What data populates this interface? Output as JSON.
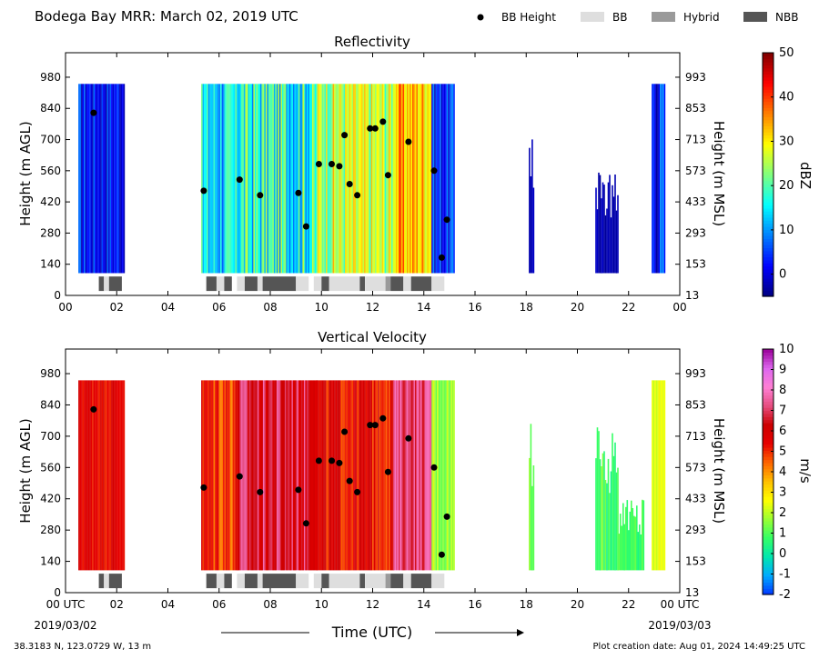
{
  "header": {
    "title": "Bodega Bay MRR:  March 02, 2019 UTC",
    "legend": [
      {
        "label": "BB Height",
        "kind": "dot",
        "color": "#000000"
      },
      {
        "label": "BB",
        "kind": "box",
        "color": "#dedede"
      },
      {
        "label": "Hybrid",
        "kind": "box",
        "color": "#9a9a9a"
      },
      {
        "label": "NBB",
        "kind": "box",
        "color": "#555555"
      }
    ]
  },
  "footer": {
    "location": "38.3183 N, 123.0729 W, 13 m",
    "created": "Plot creation date: Aug 01, 2024 14:49:25 UTC",
    "time_label": "Time (UTC)",
    "start_date": "2019/03/02",
    "end_date": "2019/03/03"
  },
  "chart_data": [
    {
      "type": "heatmap",
      "title": "Reflectivity",
      "ylabel": "Height (m AGL)",
      "ylabel_right": "Height (m MSL)",
      "colorbar_label": "dBZ",
      "colorbar_range": [
        -5,
        50
      ],
      "colorbar_ticks": [
        0,
        10,
        20,
        30,
        40,
        50
      ],
      "colors": [
        "#00007f",
        "#0000ff",
        "#007fff",
        "#00ffff",
        "#7fff7f",
        "#ffff00",
        "#ff7f00",
        "#ff0000",
        "#7f0000"
      ],
      "xlim": [
        0,
        24
      ],
      "ylim": [
        0,
        1090
      ],
      "xticks": [
        "00",
        "02",
        "04",
        "06",
        "08",
        "10",
        "12",
        "14",
        "16",
        "18",
        "20",
        "22",
        "00"
      ],
      "yticks_left": [
        0,
        140,
        280,
        420,
        560,
        700,
        840,
        980
      ],
      "yticks_right": [
        13,
        153,
        293,
        433,
        573,
        713,
        853,
        993
      ],
      "precip_segments": [
        {
          "t0": 0.5,
          "t1": 2.3,
          "vmin": -3,
          "vmax": 9,
          "top": 950
        },
        {
          "t0": 5.3,
          "t1": 6.7,
          "vmin": 6,
          "vmax": 22,
          "top": 950
        },
        {
          "t0": 6.7,
          "t1": 9.8,
          "vmin": 8,
          "vmax": 27,
          "top": 950
        },
        {
          "t0": 9.8,
          "t1": 12.8,
          "vmin": 18,
          "vmax": 34,
          "top": 950
        },
        {
          "t0": 12.8,
          "t1": 14.3,
          "vmin": 26,
          "vmax": 40,
          "top": 950
        },
        {
          "t0": 14.3,
          "t1": 15.2,
          "vmin": -2,
          "vmax": 10,
          "top": 950
        },
        {
          "t0": 18.1,
          "t1": 18.3,
          "vmin": -3,
          "vmax": 0,
          "top": 760
        },
        {
          "t0": 20.7,
          "t1": 21.6,
          "vmin": -4,
          "vmax": -1,
          "top": 560
        },
        {
          "t0": 22.9,
          "t1": 23.4,
          "vmin": -4,
          "vmax": 12,
          "top": 950
        }
      ],
      "bb_points": [
        {
          "t": 1.1,
          "h": 820
        },
        {
          "t": 5.4,
          "h": 470
        },
        {
          "t": 6.8,
          "h": 520
        },
        {
          "t": 7.6,
          "h": 450
        },
        {
          "t": 9.1,
          "h": 460
        },
        {
          "t": 9.4,
          "h": 310
        },
        {
          "t": 9.9,
          "h": 590
        },
        {
          "t": 10.4,
          "h": 590
        },
        {
          "t": 10.7,
          "h": 580
        },
        {
          "t": 10.9,
          "h": 720
        },
        {
          "t": 11.1,
          "h": 500
        },
        {
          "t": 11.4,
          "h": 450
        },
        {
          "t": 11.9,
          "h": 750
        },
        {
          "t": 12.1,
          "h": 750
        },
        {
          "t": 12.4,
          "h": 780
        },
        {
          "t": 12.6,
          "h": 540
        },
        {
          "t": 13.4,
          "h": 690
        },
        {
          "t": 14.4,
          "h": 560
        },
        {
          "t": 14.7,
          "h": 170
        },
        {
          "t": 14.9,
          "h": 340
        }
      ],
      "bb_classes": [
        {
          "t0": 1.3,
          "t1": 1.5,
          "class": "NBB"
        },
        {
          "t0": 1.5,
          "t1": 1.7,
          "class": "BB"
        },
        {
          "t0": 1.7,
          "t1": 2.2,
          "class": "NBB"
        },
        {
          "t0": 5.5,
          "t1": 5.9,
          "class": "NBB"
        },
        {
          "t0": 5.9,
          "t1": 6.2,
          "class": "BB"
        },
        {
          "t0": 6.2,
          "t1": 6.5,
          "class": "NBB"
        },
        {
          "t0": 6.7,
          "t1": 7.0,
          "class": "BB"
        },
        {
          "t0": 7.0,
          "t1": 7.5,
          "class": "NBB"
        },
        {
          "t0": 7.5,
          "t1": 7.7,
          "class": "BB"
        },
        {
          "t0": 7.7,
          "t1": 9.0,
          "class": "NBB"
        },
        {
          "t0": 9.0,
          "t1": 9.5,
          "class": "BB"
        },
        {
          "t0": 9.7,
          "t1": 10.0,
          "class": "BB"
        },
        {
          "t0": 10.0,
          "t1": 10.3,
          "class": "NBB"
        },
        {
          "t0": 10.3,
          "t1": 11.5,
          "class": "BB"
        },
        {
          "t0": 11.5,
          "t1": 11.7,
          "class": "NBB"
        },
        {
          "t0": 11.7,
          "t1": 12.5,
          "class": "BB"
        },
        {
          "t0": 12.5,
          "t1": 12.7,
          "class": "Hybrid"
        },
        {
          "t0": 12.7,
          "t1": 13.2,
          "class": "NBB"
        },
        {
          "t0": 13.2,
          "t1": 13.5,
          "class": "BB"
        },
        {
          "t0": 13.5,
          "t1": 14.3,
          "class": "NBB"
        },
        {
          "t0": 14.3,
          "t1": 14.8,
          "class": "BB"
        }
      ]
    },
    {
      "type": "heatmap",
      "title": "Vertical Velocity",
      "ylabel": "Height (m AGL)",
      "ylabel_right": "Height (m MSL)",
      "colorbar_label": "m/s",
      "colorbar_range": [
        -2,
        10
      ],
      "colorbar_ticks": [
        -2,
        -1,
        0,
        1,
        2,
        3,
        4,
        5,
        6,
        7,
        8,
        9,
        10
      ],
      "colors": [
        "#0033ff",
        "#00aaff",
        "#00e6b0",
        "#33ff66",
        "#99ff33",
        "#ffff00",
        "#ffc000",
        "#ff6600",
        "#e60000",
        "#cc0000",
        "#e64d80",
        "#ff80d5",
        "#dd66ee",
        "#990099"
      ],
      "xlim": [
        0,
        24
      ],
      "ylim": [
        0,
        1090
      ],
      "xticks": [
        "00 UTC",
        "02",
        "04",
        "06",
        "08",
        "10",
        "12",
        "14",
        "16",
        "18",
        "20",
        "22",
        "00 UTC"
      ],
      "yticks_left": [
        0,
        140,
        280,
        420,
        560,
        700,
        840,
        980
      ],
      "yticks_right": [
        13,
        153,
        293,
        433,
        573,
        713,
        853,
        993
      ],
      "precip_segments": [
        {
          "t0": 0.5,
          "t1": 2.3,
          "vmin": 5,
          "vmax": 6.2,
          "top": 950
        },
        {
          "t0": 5.3,
          "t1": 6.7,
          "vmin": 4,
          "vmax": 6.2,
          "top": 950
        },
        {
          "t0": 6.7,
          "t1": 9.8,
          "vmin": 5.5,
          "vmax": 7.8,
          "top": 950
        },
        {
          "t0": 9.8,
          "t1": 12.8,
          "vmin": 4.5,
          "vmax": 6.5,
          "top": 950
        },
        {
          "t0": 12.8,
          "t1": 14.3,
          "vmin": 6.5,
          "vmax": 8,
          "top": 950
        },
        {
          "t0": 14.3,
          "t1": 15.2,
          "vmin": 1,
          "vmax": 2.5,
          "top": 950
        },
        {
          "t0": 18.1,
          "t1": 18.3,
          "vmin": 1,
          "vmax": 2,
          "top": 760
        },
        {
          "t0": 20.7,
          "t1": 21.6,
          "vmin": 0.2,
          "vmax": 1.5,
          "top": 760
        },
        {
          "t0": 21.6,
          "t1": 22.6,
          "vmin": 0.3,
          "vmax": 1.3,
          "top": 420
        },
        {
          "t0": 22.9,
          "t1": 23.4,
          "vmin": 2,
          "vmax": 3,
          "top": 950
        }
      ],
      "bb_points": [
        {
          "t": 1.1,
          "h": 820
        },
        {
          "t": 5.4,
          "h": 470
        },
        {
          "t": 6.8,
          "h": 520
        },
        {
          "t": 7.6,
          "h": 450
        },
        {
          "t": 9.1,
          "h": 460
        },
        {
          "t": 9.4,
          "h": 310
        },
        {
          "t": 9.9,
          "h": 590
        },
        {
          "t": 10.4,
          "h": 590
        },
        {
          "t": 10.7,
          "h": 580
        },
        {
          "t": 10.9,
          "h": 720
        },
        {
          "t": 11.1,
          "h": 500
        },
        {
          "t": 11.4,
          "h": 450
        },
        {
          "t": 11.9,
          "h": 750
        },
        {
          "t": 12.1,
          "h": 750
        },
        {
          "t": 12.4,
          "h": 780
        },
        {
          "t": 12.6,
          "h": 540
        },
        {
          "t": 13.4,
          "h": 690
        },
        {
          "t": 14.4,
          "h": 560
        },
        {
          "t": 14.7,
          "h": 170
        },
        {
          "t": 14.9,
          "h": 340
        }
      ],
      "bb_classes": [
        {
          "t0": 1.3,
          "t1": 1.5,
          "class": "NBB"
        },
        {
          "t0": 1.5,
          "t1": 1.7,
          "class": "BB"
        },
        {
          "t0": 1.7,
          "t1": 2.2,
          "class": "NBB"
        },
        {
          "t0": 5.5,
          "t1": 5.9,
          "class": "NBB"
        },
        {
          "t0": 5.9,
          "t1": 6.2,
          "class": "BB"
        },
        {
          "t0": 6.2,
          "t1": 6.5,
          "class": "NBB"
        },
        {
          "t0": 6.7,
          "t1": 7.0,
          "class": "BB"
        },
        {
          "t0": 7.0,
          "t1": 7.5,
          "class": "NBB"
        },
        {
          "t0": 7.5,
          "t1": 7.7,
          "class": "BB"
        },
        {
          "t0": 7.7,
          "t1": 9.0,
          "class": "NBB"
        },
        {
          "t0": 9.0,
          "t1": 9.5,
          "class": "BB"
        },
        {
          "t0": 9.7,
          "t1": 10.0,
          "class": "BB"
        },
        {
          "t0": 10.0,
          "t1": 10.3,
          "class": "NBB"
        },
        {
          "t0": 10.3,
          "t1": 11.5,
          "class": "BB"
        },
        {
          "t0": 11.5,
          "t1": 11.7,
          "class": "NBB"
        },
        {
          "t0": 11.7,
          "t1": 12.5,
          "class": "BB"
        },
        {
          "t0": 12.5,
          "t1": 12.7,
          "class": "Hybrid"
        },
        {
          "t0": 12.7,
          "t1": 13.2,
          "class": "NBB"
        },
        {
          "t0": 13.2,
          "t1": 13.5,
          "class": "BB"
        },
        {
          "t0": 13.5,
          "t1": 14.3,
          "class": "NBB"
        },
        {
          "t0": 14.3,
          "t1": 14.8,
          "class": "BB"
        }
      ]
    }
  ]
}
